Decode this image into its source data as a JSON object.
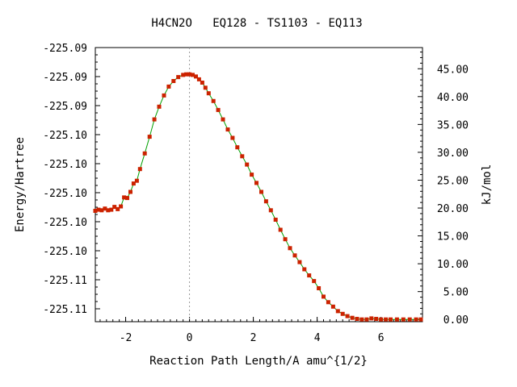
{
  "chart_data": {
    "type": "line",
    "title": "H4CN2O   EQ128 - TS1103 - EQ113",
    "xlabel": "Reaction Path Length/A amu^{1/2}",
    "ylabel_left": "Energy/Hartree",
    "ylabel_right": "kJ/mol",
    "xlim": [
      -2.95,
      7.3
    ],
    "ylim_right": [
      -0.4,
      48.8
    ],
    "x_ticks": [
      -2,
      0,
      2,
      4,
      6
    ],
    "left_tick_labels": [
      "-225.09",
      "-225.09",
      "-225.09",
      "-225.10",
      "-225.10",
      "-225.10",
      "-225.10",
      "-225.10",
      "-225.11",
      "-225.11"
    ],
    "right_ticks": [
      0,
      5,
      10,
      15,
      20,
      25,
      30,
      35,
      40,
      45
    ],
    "right_tick_labels": [
      "0.00",
      "5.00",
      "10.00",
      "15.00",
      "20.00",
      "25.00",
      "30.00",
      "35.00",
      "40.00",
      "45.00"
    ],
    "vline_x": 0,
    "grid": false,
    "line_color": "#00a000",
    "marker_color": "#cc2200",
    "series": [
      {
        "x": [
          -2.95,
          -2.85,
          -2.75,
          -2.65,
          -2.55,
          -2.45,
          -2.35,
          -2.25,
          -2.15,
          -2.05,
          -1.95,
          -1.85,
          -1.75,
          -1.65,
          -1.55,
          -1.4,
          -1.25,
          -1.1,
          -0.95,
          -0.8,
          -0.65,
          -0.5,
          -0.35,
          -0.2,
          -0.1,
          0,
          0.1,
          0.2,
          0.3,
          0.4,
          0.5,
          0.6,
          0.75,
          0.9,
          1.05,
          1.2,
          1.35,
          1.5,
          1.65,
          1.8,
          1.95,
          2.1,
          2.25,
          2.4,
          2.55,
          2.7,
          2.85,
          3.0,
          3.15,
          3.3,
          3.45,
          3.6,
          3.75,
          3.9,
          4.05,
          4.2,
          4.35,
          4.5,
          4.65,
          4.8,
          4.95,
          5.1,
          5.25,
          5.4,
          5.55,
          5.7,
          5.85,
          6.0,
          6.15,
          6.3,
          6.5,
          6.7,
          6.9,
          7.1,
          7.25
        ],
        "y": [
          19.5,
          19.7,
          19.6,
          19.9,
          19.6,
          19.7,
          20.2,
          19.8,
          20.3,
          21.9,
          21.8,
          22.9,
          24.4,
          24.9,
          27.0,
          29.8,
          32.8,
          35.9,
          38.2,
          40.2,
          41.8,
          42.8,
          43.5,
          43.9,
          44.0,
          44.0,
          43.9,
          43.6,
          43.1,
          42.5,
          41.6,
          40.6,
          39.2,
          37.6,
          35.9,
          34.1,
          32.6,
          30.9,
          29.3,
          27.8,
          26.0,
          24.5,
          22.9,
          21.2,
          19.6,
          17.9,
          16.1,
          14.4,
          12.8,
          11.5,
          10.3,
          9.0,
          7.9,
          6.9,
          5.6,
          4.1,
          3.1,
          2.3,
          1.5,
          1.0,
          0.6,
          0.3,
          0.1,
          0,
          0,
          0.2,
          0.1,
          0,
          0,
          0,
          0,
          0,
          0,
          0,
          0
        ]
      }
    ]
  }
}
